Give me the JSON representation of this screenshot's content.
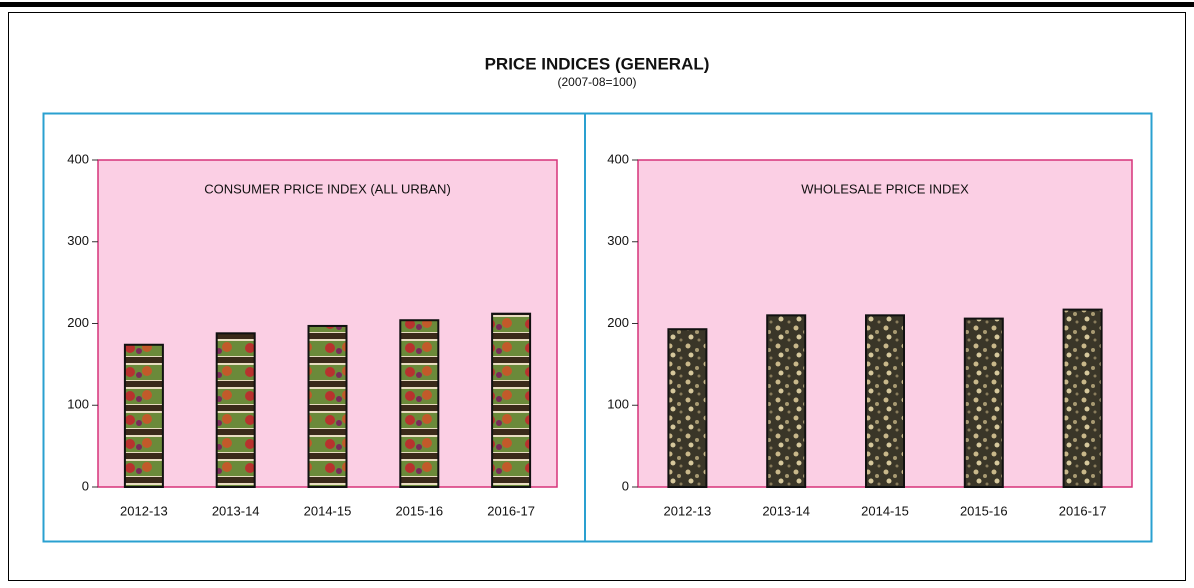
{
  "header": {
    "title": "PRICE INDICES (GENERAL)",
    "subtitle": "(2007-08=100)"
  },
  "chart_data": [
    {
      "type": "bar",
      "title": "CONSUMER PRICE INDEX (ALL URBAN)",
      "categories": [
        "2012-13",
        "2013-14",
        "2014-15",
        "2015-16",
        "2016-17"
      ],
      "values": [
        174,
        188,
        197,
        204,
        212
      ],
      "ylim": [
        0,
        400
      ],
      "yticks": [
        0,
        100,
        200,
        300,
        400
      ],
      "pattern": "fruit"
    },
    {
      "type": "bar",
      "title": "WHOLESALE PRICE INDEX",
      "categories": [
        "2012-13",
        "2013-14",
        "2014-15",
        "2015-16",
        "2016-17"
      ],
      "values": [
        193,
        210,
        210,
        206,
        217
      ],
      "ylim": [
        0,
        400
      ],
      "yticks": [
        0,
        100,
        200,
        300,
        400
      ],
      "pattern": "grain"
    }
  ]
}
